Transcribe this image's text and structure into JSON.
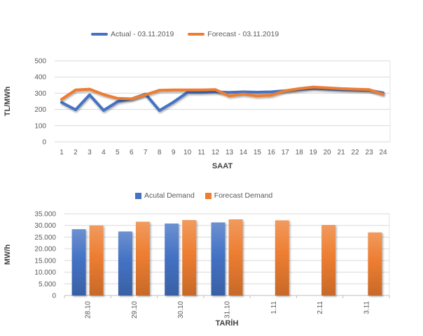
{
  "style": {
    "background": "#ffffff",
    "grid_color": "#D9D9D9",
    "axis_line_color": "#BFBFBF",
    "plot_edge_color": "#E3E3E3",
    "tick_text_color": "#595959",
    "axis_title_color": "#404040",
    "accent_blue": "#4472C4",
    "accent_orange": "#ED7D31"
  },
  "chart_data": [
    {
      "type": "line",
      "title": "",
      "x": [
        1,
        2,
        3,
        4,
        5,
        6,
        7,
        8,
        9,
        10,
        11,
        12,
        13,
        14,
        15,
        16,
        17,
        18,
        19,
        20,
        21,
        22,
        23,
        24
      ],
      "xlabel": "SAAT",
      "ylabel": "TL/MWh",
      "ylim": [
        0,
        500
      ],
      "ytick_step": 100,
      "ytick_labels": [
        "0",
        "100",
        "200",
        "300",
        "400",
        "500"
      ],
      "grid": true,
      "legend_position": "top",
      "series": [
        {
          "name": "Actual - 03.11.2019",
          "color": "#4472C4",
          "values": [
            243,
            198,
            290,
            194,
            248,
            265,
            295,
            193,
            245,
            305,
            305,
            308,
            305,
            308,
            306,
            308,
            315,
            323,
            330,
            326,
            322,
            320,
            318,
            302
          ]
        },
        {
          "name": "Forecast - 03.11.2019",
          "color": "#ED7D31",
          "values": [
            262,
            320,
            325,
            292,
            268,
            265,
            290,
            318,
            320,
            320,
            320,
            322,
            283,
            295,
            283,
            288,
            315,
            328,
            338,
            333,
            328,
            325,
            322,
            293
          ]
        }
      ]
    },
    {
      "type": "bar",
      "title": "",
      "categories": [
        "28.10",
        "29.10",
        "30.10",
        "31.10",
        "1.11",
        "2.11",
        "3.11"
      ],
      "xlabel": "TARİH",
      "ylabel": "MW/h",
      "ylim": [
        0,
        35000
      ],
      "ytick_step": 5000,
      "ytick_labels": [
        "0",
        "5.000",
        "10.000",
        "15.000",
        "20.000",
        "25.000",
        "30.000",
        "35.000"
      ],
      "grid": true,
      "legend_position": "top",
      "series": [
        {
          "name": "Acutal Demand",
          "color": "#4472C4",
          "values": [
            28400,
            27400,
            30800,
            31300,
            null,
            null,
            null
          ]
        },
        {
          "name": "Forecast Demand",
          "color": "#ED7D31",
          "values": [
            30000,
            31600,
            32300,
            32600,
            32200,
            30200,
            27000
          ]
        }
      ]
    }
  ]
}
